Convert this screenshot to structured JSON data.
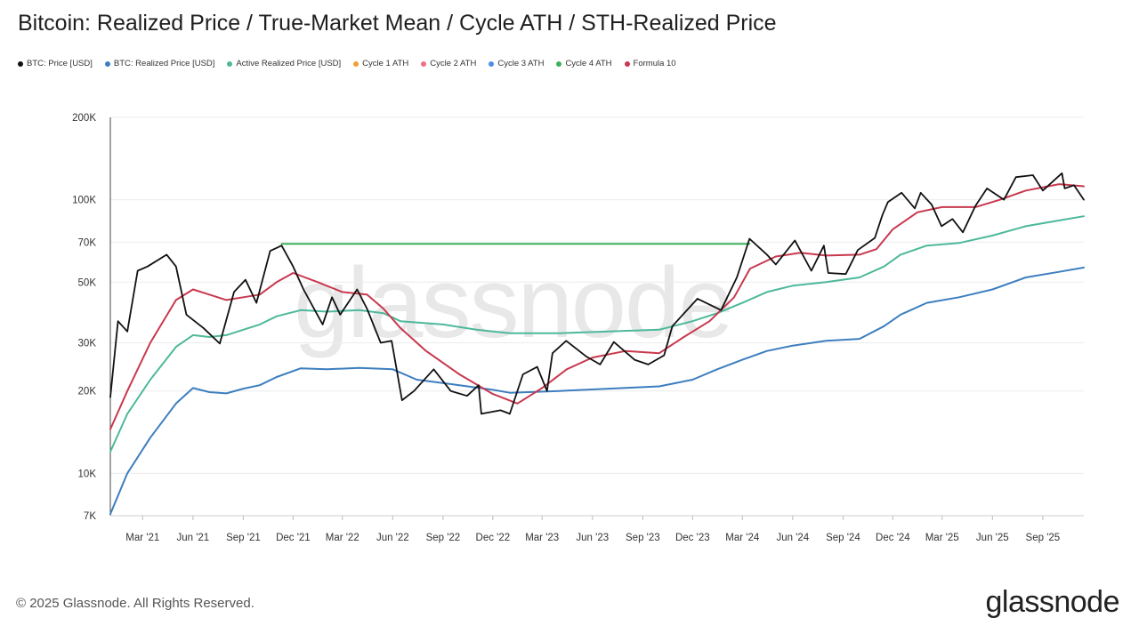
{
  "title": "Bitcoin: Realized Price / True-Market Mean / Cycle ATH / STH-Realized Price",
  "legend": [
    {
      "label": "BTC: Price [USD]",
      "color": "#111111"
    },
    {
      "label": "BTC: Realized Price [USD]",
      "color": "#3d7ebf"
    },
    {
      "label": "Active Realized Price [USD]",
      "color": "#4db89a"
    },
    {
      "label": "Cycle 1 ATH",
      "color": "#f0a030"
    },
    {
      "label": "Cycle 2 ATH",
      "color": "#f07080"
    },
    {
      "label": "Cycle 3 ATH",
      "color": "#4a90e2"
    },
    {
      "label": "Cycle 4 ATH",
      "color": "#3cb05a"
    },
    {
      "label": "Formula 10",
      "color": "#c8384e"
    }
  ],
  "watermark": "glassnode",
  "footer": {
    "copyright": "© 2025 Glassnode. All Rights Reserved.",
    "logo": "glassnode"
  },
  "chart_data": {
    "type": "line",
    "y_scale": "log",
    "ylim": [
      7000,
      200000
    ],
    "y_ticks": [
      {
        "value": 200000,
        "label": "200K"
      },
      {
        "value": 100000,
        "label": "100K"
      },
      {
        "value": 70000,
        "label": "70K"
      },
      {
        "value": 50000,
        "label": "50K"
      },
      {
        "value": 30000,
        "label": "30K"
      },
      {
        "value": 20000,
        "label": "20K"
      },
      {
        "value": 10000,
        "label": "10K"
      },
      {
        "value": 7000,
        "label": "7K"
      }
    ],
    "xlim": [
      "2021-01-01",
      "2025-11-15"
    ],
    "x_ticks": [
      {
        "date": "2021-03-01",
        "label": "Mar '21"
      },
      {
        "date": "2021-06-01",
        "label": "Jun '21"
      },
      {
        "date": "2021-09-01",
        "label": "Sep '21"
      },
      {
        "date": "2021-12-01",
        "label": "Dec '21"
      },
      {
        "date": "2022-03-01",
        "label": "Mar '22"
      },
      {
        "date": "2022-06-01",
        "label": "Jun '22"
      },
      {
        "date": "2022-09-01",
        "label": "Sep '22"
      },
      {
        "date": "2022-12-01",
        "label": "Dec '22"
      },
      {
        "date": "2023-03-01",
        "label": "Mar '23"
      },
      {
        "date": "2023-06-01",
        "label": "Jun '23"
      },
      {
        "date": "2023-09-01",
        "label": "Sep '23"
      },
      {
        "date": "2023-12-01",
        "label": "Dec '23"
      },
      {
        "date": "2024-03-01",
        "label": "Mar '24"
      },
      {
        "date": "2024-06-01",
        "label": "Jun '24"
      },
      {
        "date": "2024-09-01",
        "label": "Sep '24"
      },
      {
        "date": "2024-12-01",
        "label": "Dec '24"
      },
      {
        "date": "2025-03-01",
        "label": "Mar '25"
      },
      {
        "date": "2025-06-01",
        "label": "Jun '25"
      },
      {
        "date": "2025-09-01",
        "label": "Sep '25"
      }
    ],
    "grid": true,
    "series": [
      {
        "name": "BTC: Price [USD]",
        "color": "#111111",
        "points": [
          [
            "2021-01-01",
            19000
          ],
          [
            "2021-01-15",
            36000
          ],
          [
            "2021-02-01",
            33000
          ],
          [
            "2021-02-20",
            55000
          ],
          [
            "2021-03-10",
            57000
          ],
          [
            "2021-04-14",
            63000
          ],
          [
            "2021-05-01",
            57000
          ],
          [
            "2021-05-20",
            38000
          ],
          [
            "2021-06-20",
            34000
          ],
          [
            "2021-07-20",
            29800
          ],
          [
            "2021-08-15",
            46000
          ],
          [
            "2021-09-05",
            51000
          ],
          [
            "2021-09-25",
            42000
          ],
          [
            "2021-10-20",
            65000
          ],
          [
            "2021-11-10",
            68000
          ],
          [
            "2021-12-01",
            57000
          ],
          [
            "2021-12-20",
            47000
          ],
          [
            "2022-01-24",
            35000
          ],
          [
            "2022-02-10",
            44000
          ],
          [
            "2022-02-25",
            38000
          ],
          [
            "2022-03-28",
            47000
          ],
          [
            "2022-04-15",
            40000
          ],
          [
            "2022-05-10",
            30000
          ],
          [
            "2022-05-30",
            30500
          ],
          [
            "2022-06-18",
            18500
          ],
          [
            "2022-07-10",
            20000
          ],
          [
            "2022-08-15",
            24000
          ],
          [
            "2022-09-15",
            20000
          ],
          [
            "2022-10-15",
            19200
          ],
          [
            "2022-11-05",
            21000
          ],
          [
            "2022-11-10",
            16500
          ],
          [
            "2022-12-15",
            17000
          ],
          [
            "2023-01-01",
            16500
          ],
          [
            "2023-01-25",
            23000
          ],
          [
            "2023-02-20",
            24500
          ],
          [
            "2023-03-10",
            20000
          ],
          [
            "2023-03-20",
            27500
          ],
          [
            "2023-04-14",
            30500
          ],
          [
            "2023-05-20",
            26800
          ],
          [
            "2023-06-15",
            25000
          ],
          [
            "2023-07-10",
            30200
          ],
          [
            "2023-08-17",
            26000
          ],
          [
            "2023-09-11",
            25000
          ],
          [
            "2023-10-10",
            27000
          ],
          [
            "2023-10-25",
            34500
          ],
          [
            "2023-12-10",
            43500
          ],
          [
            "2024-01-22",
            39500
          ],
          [
            "2024-02-20",
            52000
          ],
          [
            "2024-03-14",
            72000
          ],
          [
            "2024-04-15",
            63000
          ],
          [
            "2024-05-01",
            58000
          ],
          [
            "2024-06-05",
            71000
          ],
          [
            "2024-07-05",
            55000
          ],
          [
            "2024-07-28",
            68000
          ],
          [
            "2024-08-05",
            54000
          ],
          [
            "2024-09-06",
            53500
          ],
          [
            "2024-09-28",
            65500
          ],
          [
            "2024-10-29",
            72500
          ],
          [
            "2024-11-12",
            88000
          ],
          [
            "2024-11-22",
            98000
          ],
          [
            "2024-12-17",
            106000
          ],
          [
            "2025-01-10",
            93000
          ],
          [
            "2025-01-21",
            106000
          ],
          [
            "2025-02-10",
            96000
          ],
          [
            "2025-02-28",
            80000
          ],
          [
            "2025-03-20",
            85000
          ],
          [
            "2025-04-08",
            76000
          ],
          [
            "2025-05-01",
            95000
          ],
          [
            "2025-05-22",
            110000
          ],
          [
            "2025-06-22",
            100000
          ],
          [
            "2025-07-14",
            121000
          ],
          [
            "2025-08-14",
            123000
          ],
          [
            "2025-09-01",
            108000
          ],
          [
            "2025-10-06",
            125000
          ],
          [
            "2025-10-11",
            110000
          ],
          [
            "2025-10-28",
            113000
          ],
          [
            "2025-11-15",
            100000
          ]
        ]
      },
      {
        "name": "BTC: Realized Price [USD]",
        "color": "#3d7ebf",
        "points": [
          [
            "2021-01-01",
            7100
          ],
          [
            "2021-02-01",
            10000
          ],
          [
            "2021-03-15",
            13500
          ],
          [
            "2021-05-01",
            18000
          ],
          [
            "2021-06-01",
            20500
          ],
          [
            "2021-07-01",
            19800
          ],
          [
            "2021-08-01",
            19600
          ],
          [
            "2021-09-01",
            20400
          ],
          [
            "2021-10-01",
            21000
          ],
          [
            "2021-11-01",
            22500
          ],
          [
            "2021-12-15",
            24200
          ],
          [
            "2022-02-01",
            24000
          ],
          [
            "2022-04-01",
            24300
          ],
          [
            "2022-06-01",
            24000
          ],
          [
            "2022-07-15",
            22000
          ],
          [
            "2022-10-01",
            21000
          ],
          [
            "2022-12-01",
            20200
          ],
          [
            "2023-01-01",
            19700
          ],
          [
            "2023-04-01",
            20000
          ],
          [
            "2023-07-01",
            20400
          ],
          [
            "2023-10-01",
            20800
          ],
          [
            "2023-12-01",
            22000
          ],
          [
            "2024-01-15",
            24000
          ],
          [
            "2024-03-01",
            26000
          ],
          [
            "2024-04-15",
            28000
          ],
          [
            "2024-06-01",
            29300
          ],
          [
            "2024-08-01",
            30500
          ],
          [
            "2024-10-01",
            31000
          ],
          [
            "2024-11-15",
            34500
          ],
          [
            "2024-12-15",
            38000
          ],
          [
            "2025-02-01",
            42000
          ],
          [
            "2025-04-01",
            44000
          ],
          [
            "2025-06-01",
            47000
          ],
          [
            "2025-08-01",
            52000
          ],
          [
            "2025-10-01",
            54500
          ],
          [
            "2025-11-15",
            56500
          ]
        ]
      },
      {
        "name": "Active Realized Price [USD]",
        "color": "#4db89a",
        "points": [
          [
            "2021-01-01",
            12000
          ],
          [
            "2021-02-01",
            16500
          ],
          [
            "2021-03-15",
            22000
          ],
          [
            "2021-05-01",
            29000
          ],
          [
            "2021-06-01",
            32000
          ],
          [
            "2021-07-01",
            31500
          ],
          [
            "2021-08-01",
            32000
          ],
          [
            "2021-09-01",
            33500
          ],
          [
            "2021-10-01",
            35000
          ],
          [
            "2021-11-01",
            37500
          ],
          [
            "2021-12-15",
            39500
          ],
          [
            "2022-02-01",
            39000
          ],
          [
            "2022-04-01",
            39500
          ],
          [
            "2022-05-15",
            38500
          ],
          [
            "2022-06-15",
            36000
          ],
          [
            "2022-09-01",
            35000
          ],
          [
            "2022-11-01",
            33500
          ],
          [
            "2023-01-01",
            32500
          ],
          [
            "2023-04-01",
            32500
          ],
          [
            "2023-07-01",
            33000
          ],
          [
            "2023-10-01",
            33500
          ],
          [
            "2023-12-01",
            36000
          ],
          [
            "2024-01-15",
            38500
          ],
          [
            "2024-03-01",
            42000
          ],
          [
            "2024-04-15",
            46000
          ],
          [
            "2024-06-01",
            48500
          ],
          [
            "2024-08-01",
            50000
          ],
          [
            "2024-10-01",
            52000
          ],
          [
            "2024-11-15",
            57000
          ],
          [
            "2024-12-15",
            63000
          ],
          [
            "2025-02-01",
            68000
          ],
          [
            "2025-04-01",
            69500
          ],
          [
            "2025-06-01",
            74000
          ],
          [
            "2025-08-01",
            80000
          ],
          [
            "2025-10-01",
            84000
          ],
          [
            "2025-11-15",
            87000
          ]
        ]
      },
      {
        "name": "Formula 10",
        "color": "#c8384e",
        "points": [
          [
            "2021-01-01",
            14500
          ],
          [
            "2021-02-01",
            20000
          ],
          [
            "2021-03-15",
            30000
          ],
          [
            "2021-05-01",
            43000
          ],
          [
            "2021-06-01",
            47000
          ],
          [
            "2021-07-01",
            45000
          ],
          [
            "2021-08-01",
            43000
          ],
          [
            "2021-09-01",
            44000
          ],
          [
            "2021-10-01",
            45000
          ],
          [
            "2021-11-01",
            50000
          ],
          [
            "2021-12-01",
            54000
          ],
          [
            "2022-01-15",
            50000
          ],
          [
            "2022-03-01",
            46000
          ],
          [
            "2022-04-15",
            45000
          ],
          [
            "2022-05-15",
            40000
          ],
          [
            "2022-06-15",
            34000
          ],
          [
            "2022-08-01",
            28000
          ],
          [
            "2022-10-01",
            23000
          ],
          [
            "2022-12-01",
            19500
          ],
          [
            "2023-01-15",
            18000
          ],
          [
            "2023-03-01",
            20500
          ],
          [
            "2023-04-15",
            24000
          ],
          [
            "2023-06-01",
            26500
          ],
          [
            "2023-08-01",
            28000
          ],
          [
            "2023-10-01",
            27500
          ],
          [
            "2023-11-15",
            31500
          ],
          [
            "2024-01-01",
            36000
          ],
          [
            "2024-02-15",
            44000
          ],
          [
            "2024-03-15",
            56000
          ],
          [
            "2024-05-01",
            62000
          ],
          [
            "2024-06-15",
            64000
          ],
          [
            "2024-08-01",
            62500
          ],
          [
            "2024-10-01",
            63000
          ],
          [
            "2024-11-01",
            66000
          ],
          [
            "2024-12-01",
            78000
          ],
          [
            "2025-01-15",
            90000
          ],
          [
            "2025-03-01",
            94000
          ],
          [
            "2025-05-01",
            94000
          ],
          [
            "2025-06-15",
            100000
          ],
          [
            "2025-08-01",
            108000
          ],
          [
            "2025-10-01",
            114000
          ],
          [
            "2025-11-15",
            112000
          ]
        ]
      },
      {
        "name": "Cycle 4 ATH",
        "color": "#3cb05a",
        "points": [
          [
            "2021-11-10",
            69000
          ],
          [
            "2024-03-14",
            69000
          ]
        ]
      }
    ]
  }
}
